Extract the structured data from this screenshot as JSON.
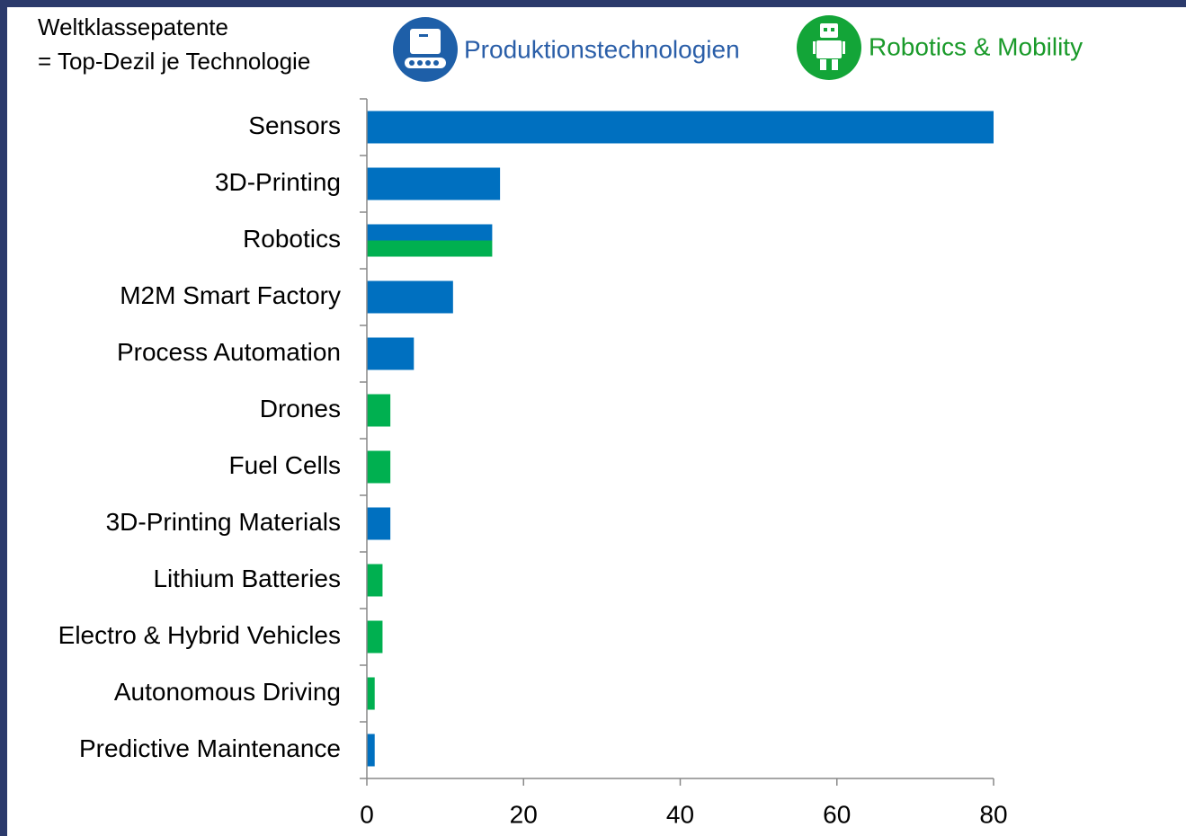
{
  "chart_data": {
    "type": "bar",
    "orientation": "horizontal",
    "annotations": [
      "Weltklassepatente",
      "= Top-Dezil je Technologie"
    ],
    "categories": [
      "Sensors",
      "3D-Printing",
      "Robotics",
      "M2M Smart Factory",
      "Process Automation",
      "Drones",
      "Fuel Cells",
      "3D-Printing Materials",
      "Lithium Batteries",
      "Electro & Hybrid Vehicles",
      "Autonomous Driving",
      "Predictive Maintenance"
    ],
    "series": [
      {
        "name": "Produktionstechnologien",
        "color": "#0070c0",
        "values": [
          80,
          17,
          16,
          11,
          6,
          null,
          null,
          3,
          null,
          null,
          null,
          1
        ]
      },
      {
        "name": "Robotics & Mobility",
        "color": "#00b050",
        "values": [
          null,
          null,
          16,
          null,
          null,
          3,
          3,
          null,
          2,
          2,
          1,
          null
        ]
      }
    ],
    "xlim": [
      0,
      80
    ],
    "xticks": [
      0,
      20,
      40,
      60,
      80
    ]
  }
}
